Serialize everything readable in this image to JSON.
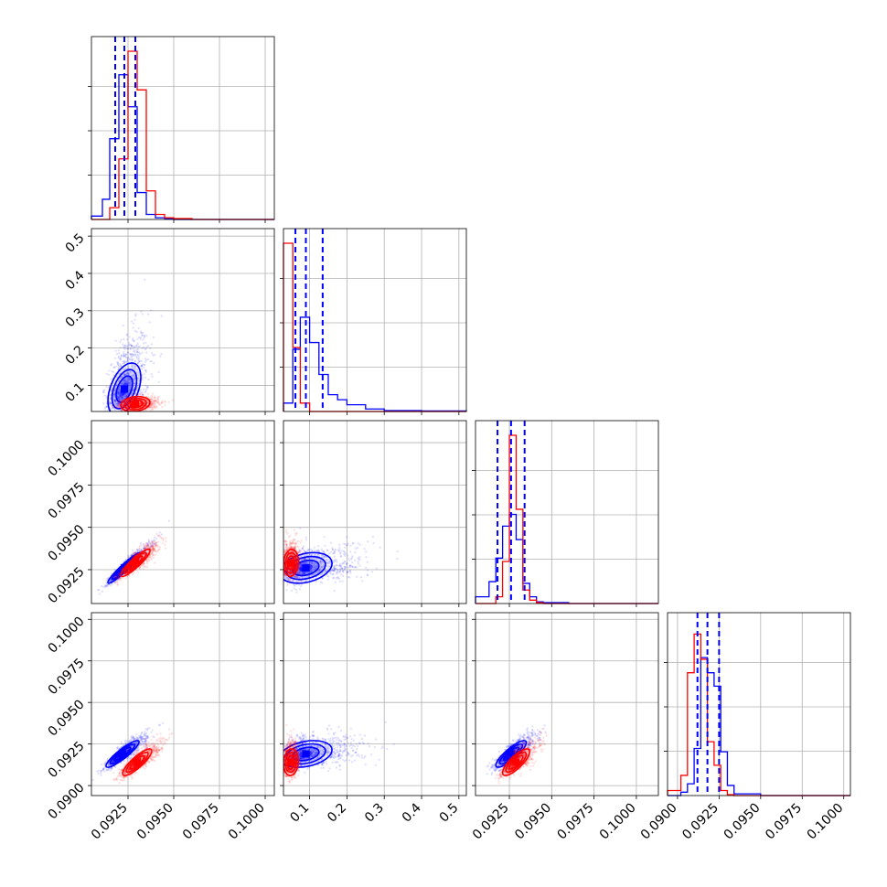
{
  "colors": {
    "series_a": "#0000ff",
    "series_b": "#ff0000",
    "grid": "#b0b0b0",
    "frame": "#000000"
  },
  "chart_data": {
    "type": "corner",
    "series": [
      {
        "name": "",
        "color": "#0000ff"
      },
      {
        "name": "",
        "color": "#ff0000"
      }
    ],
    "grid": true,
    "parameters": [
      {
        "index": 0,
        "range": [
          0.0905,
          0.1005
        ],
        "ticks": [
          0.0925,
          0.095,
          0.0975,
          0.1
        ],
        "tick_labels": [
          "0.0925",
          "0.0950",
          "0.0975",
          "0.1000"
        ]
      },
      {
        "index": 1,
        "range": [
          0.03,
          0.52
        ],
        "ticks": [
          0.1,
          0.2,
          0.3,
          0.4,
          0.5
        ],
        "tick_labels": [
          "0.1",
          "0.2",
          "0.3",
          "0.4",
          "0.5"
        ]
      },
      {
        "index": 2,
        "range": [
          0.0905,
          0.1013
        ],
        "ticks": [
          0.0925,
          0.095,
          0.0975,
          0.1
        ],
        "tick_labels": [
          "0.0925",
          "0.0950",
          "0.0975",
          "0.1000"
        ]
      },
      {
        "index": 3,
        "range": [
          0.0894,
          0.1004
        ],
        "ticks": [
          0.09,
          0.0925,
          0.095,
          0.0975,
          0.1
        ],
        "tick_labels": [
          "0.0900",
          "0.0925",
          "0.0950",
          "0.0975",
          "0.1000"
        ]
      }
    ],
    "quantile_lines": [
      [
        0.0918,
        0.0923,
        0.0929
      ],
      [
        0.062,
        0.09,
        0.135
      ],
      [
        0.0918,
        0.0926,
        0.0934
      ],
      [
        0.0912,
        0.0918,
        0.0925
      ]
    ],
    "histograms": [
      {
        "param": 0,
        "bins": [
          0.0905,
          0.0911,
          0.0915,
          0.092,
          0.0925,
          0.093,
          0.0935,
          0.094,
          0.0945,
          0.095,
          0.096,
          0.1005
        ],
        "series_a": [
          0.02,
          0.12,
          0.48,
          0.86,
          0.67,
          0.16,
          0.03,
          0.01,
          0.005,
          0,
          0
        ],
        "series_b": [
          0,
          0,
          0.07,
          0.36,
          1.0,
          0.77,
          0.17,
          0.03,
          0.01,
          0.005,
          0
        ]
      },
      {
        "param": 1,
        "bins": [
          0.03,
          0.055,
          0.075,
          0.1,
          0.125,
          0.15,
          0.175,
          0.2,
          0.25,
          0.3,
          0.4,
          0.52
        ],
        "series_a": [
          0.05,
          0.37,
          0.56,
          0.41,
          0.22,
          0.1,
          0.07,
          0.04,
          0.015,
          0.005,
          0.003
        ],
        "series_b": [
          1.0,
          0.38,
          0.05,
          0,
          0,
          0,
          0,
          0,
          0,
          0,
          0
        ]
      },
      {
        "param": 2,
        "bins": [
          0.0905,
          0.0913,
          0.0917,
          0.0921,
          0.0925,
          0.0929,
          0.0933,
          0.0937,
          0.0941,
          0.0945,
          0.096,
          0.1013
        ],
        "series_a": [
          0.04,
          0.13,
          0.27,
          0.46,
          0.53,
          0.38,
          0.12,
          0.04,
          0.01,
          0.005,
          0
        ],
        "series_b": [
          0,
          0,
          0.04,
          0.25,
          1.0,
          0.56,
          0.08,
          0.02,
          0.005,
          0,
          0
        ]
      },
      {
        "param": 3,
        "bins": [
          0.0894,
          0.0902,
          0.0906,
          0.091,
          0.0914,
          0.0918,
          0.0922,
          0.0926,
          0.093,
          0.0934,
          0.095,
          0.1004
        ],
        "series_a": [
          0,
          0.02,
          0.07,
          0.28,
          0.82,
          0.73,
          0.65,
          0.26,
          0.06,
          0.01,
          0
        ],
        "series_b": [
          0.03,
          0.12,
          0.73,
          0.96,
          0.81,
          0.32,
          0.18,
          0.03,
          0.005,
          0,
          0
        ]
      }
    ],
    "joint_panels": [
      {
        "x": 0,
        "y": 1,
        "series_a_center": [
          0.0923,
          0.09
        ],
        "series_a_spread": [
          0.00045,
          0.035
        ],
        "series_a_correlation": 0.45,
        "series_b_center": [
          0.0929,
          0.05
        ],
        "series_b_spread": [
          0.0004,
          0.01
        ],
        "series_b_correlation": 0.2
      },
      {
        "x": 0,
        "y": 2,
        "series_a_center": [
          0.0923,
          0.0926
        ],
        "series_a_spread": [
          0.00045,
          0.00045
        ],
        "series_a_correlation": 0.95,
        "series_b_center": [
          0.0929,
          0.0929
        ],
        "series_b_spread": [
          0.0004,
          0.0004
        ],
        "series_b_correlation": 0.9
      },
      {
        "x": 0,
        "y": 3,
        "series_a_center": [
          0.0922,
          0.0919
        ],
        "series_a_spread": [
          0.00045,
          0.0004
        ],
        "series_a_correlation": 0.9,
        "series_b_center": [
          0.093,
          0.0914
        ],
        "series_b_spread": [
          0.0004,
          0.0004
        ],
        "series_b_correlation": 0.85
      },
      {
        "x": 1,
        "y": 2,
        "series_a_center": [
          0.09,
          0.0926
        ],
        "series_a_spread": [
          0.035,
          0.00045
        ],
        "series_a_correlation": 0.3,
        "series_b_center": [
          0.05,
          0.0929
        ],
        "series_b_spread": [
          0.01,
          0.0004
        ],
        "series_b_correlation": 0.1
      },
      {
        "x": 1,
        "y": 3,
        "series_a_center": [
          0.09,
          0.0919
        ],
        "series_a_spread": [
          0.035,
          0.0004
        ],
        "series_a_correlation": 0.3,
        "series_b_center": [
          0.05,
          0.0914
        ],
        "series_b_spread": [
          0.01,
          0.0004
        ],
        "series_b_correlation": 0.1
      },
      {
        "x": 2,
        "y": 3,
        "series_a_center": [
          0.0926,
          0.0919
        ],
        "series_a_spread": [
          0.00045,
          0.0004
        ],
        "series_a_correlation": 0.85,
        "series_b_center": [
          0.0929,
          0.0914
        ],
        "series_b_spread": [
          0.0004,
          0.0004
        ],
        "series_b_correlation": 0.8
      }
    ]
  }
}
